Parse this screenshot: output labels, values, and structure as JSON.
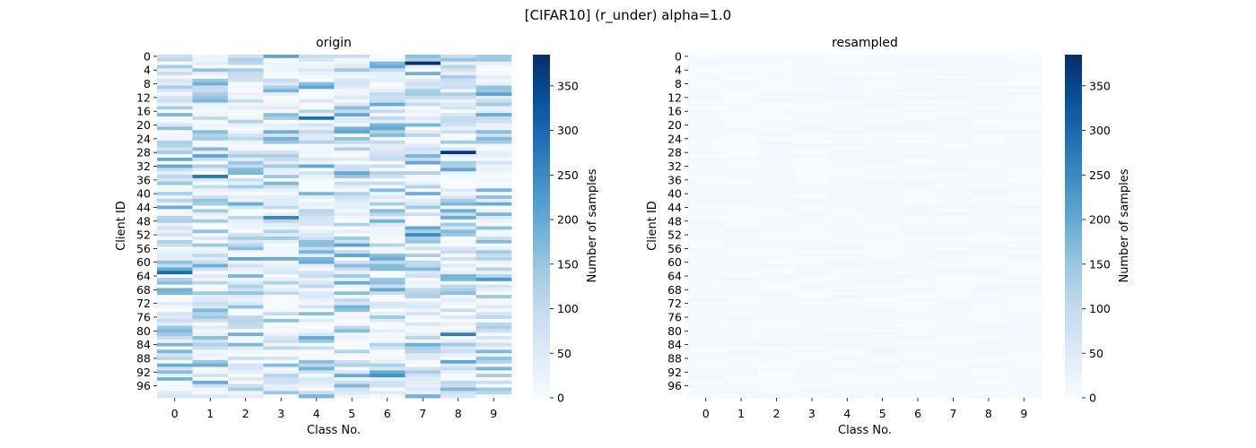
{
  "figure": {
    "suptitle": "[CIFAR10] (r_under) alpha=1.0"
  },
  "chart_data": [
    {
      "type": "heatmap",
      "title": "origin",
      "xlabel": "Class No.",
      "ylabel": "Client ID",
      "colorbar_label": "Number of samples",
      "x_ticks": [
        "0",
        "1",
        "2",
        "3",
        "4",
        "5",
        "6",
        "7",
        "8",
        "9"
      ],
      "y_ticks": [
        "0",
        "4",
        "8",
        "12",
        "16",
        "20",
        "24",
        "28",
        "32",
        "36",
        "40",
        "44",
        "48",
        "52",
        "56",
        "60",
        "64",
        "68",
        "72",
        "76",
        "80",
        "84",
        "88",
        "92",
        "96"
      ],
      "n_rows": 100,
      "n_cols": 10,
      "value_range": [
        0,
        385
      ],
      "colorbar_ticks": [
        0,
        50,
        100,
        150,
        200,
        250,
        300,
        350
      ],
      "colormap": [
        "#f7fbff",
        "#deebf7",
        "#c6dbef",
        "#9ecae1",
        "#6baed6",
        "#4292c6",
        "#2171b5",
        "#08519c",
        "#08306b"
      ],
      "notable_cells": [
        {
          "row": 2,
          "col": 7,
          "value": 385
        },
        {
          "row": 28,
          "col": 8,
          "value": 370
        },
        {
          "row": 18,
          "col": 4,
          "value": 290
        },
        {
          "row": 63,
          "col": 0,
          "value": 300
        },
        {
          "row": 35,
          "col": 1,
          "value": 280
        },
        {
          "row": 47,
          "col": 3,
          "value": 260
        },
        {
          "row": 52,
          "col": 7,
          "value": 250
        },
        {
          "row": 81,
          "col": 8,
          "value": 270
        },
        {
          "row": 93,
          "col": 6,
          "value": 240
        },
        {
          "row": 65,
          "col": 9,
          "value": 230
        }
      ]
    },
    {
      "type": "heatmap",
      "title": "resampled",
      "xlabel": "Class No.",
      "ylabel": "Client ID",
      "colorbar_label": "Number of samples",
      "x_ticks": [
        "0",
        "1",
        "2",
        "3",
        "4",
        "5",
        "6",
        "7",
        "8",
        "9"
      ],
      "y_ticks": [
        "0",
        "4",
        "8",
        "12",
        "16",
        "20",
        "24",
        "28",
        "32",
        "36",
        "40",
        "44",
        "48",
        "52",
        "56",
        "60",
        "64",
        "68",
        "72",
        "76",
        "80",
        "84",
        "88",
        "92",
        "96"
      ],
      "n_rows": 100,
      "n_cols": 10,
      "value_range": [
        0,
        385
      ],
      "colorbar_ticks": [
        0,
        50,
        100,
        150,
        200,
        250,
        300,
        350
      ],
      "colormap": [
        "#f7fbff",
        "#deebf7",
        "#c6dbef",
        "#9ecae1",
        "#6baed6",
        "#4292c6",
        "#2171b5",
        "#08519c",
        "#08306b"
      ],
      "approx_cell_value_range": [
        0,
        10
      ]
    }
  ]
}
